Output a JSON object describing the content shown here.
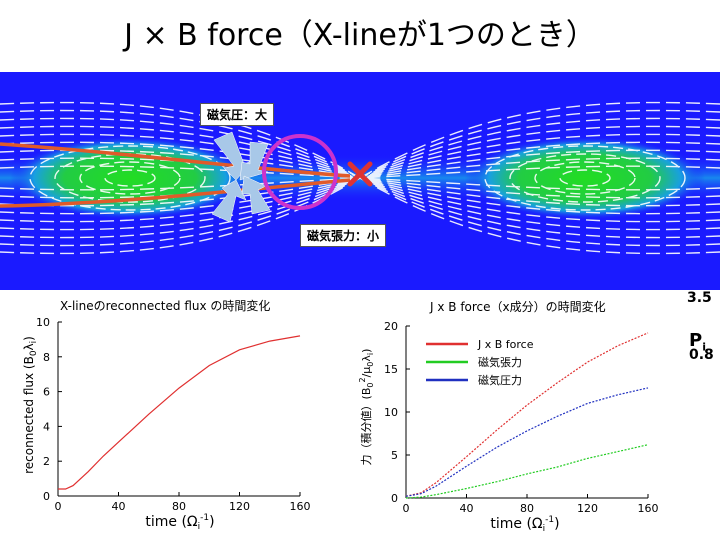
{
  "slide": {
    "title": "J × B  force（X-lineが1つのとき）"
  },
  "field_image": {
    "label_pressure": "磁気圧：大",
    "label_tension": "磁気張力：小",
    "colorbar": {
      "max_label": "3.5",
      "min_label": "0.8",
      "quantity": "P",
      "quantity_sub": "i"
    },
    "colors": {
      "background": "#1a1aff",
      "core": "#22dd22",
      "field_line": "#ffffff",
      "flux_tube": "#e05a2a",
      "circle": "#cc33cc",
      "xmark": "#dd3333",
      "arrow": "#a8c8e8"
    }
  },
  "chart_data": [
    {
      "type": "line",
      "title": "X-lineのreconnected flux の時間変化",
      "xlabel": "time (Ω",
      "xlabel_sub": "i",
      "xlabel_sup": "-1",
      "xlabel_end": ")",
      "ylabel": "reconnected flux (B",
      "ylabel_sub1": "0",
      "ylabel_mid": "λ",
      "ylabel_sub2": "i",
      "ylabel_end": ")",
      "xlim": [
        0,
        160
      ],
      "ylim": [
        0,
        10
      ],
      "xticks": [
        "0",
        "40",
        "80",
        "120",
        "160"
      ],
      "yticks": [
        "0",
        "2",
        "4",
        "6",
        "8",
        "10"
      ],
      "series": [
        {
          "color": "#e03030",
          "x": [
            0,
            5,
            10,
            20,
            30,
            40,
            60,
            80,
            100,
            120,
            140,
            160
          ],
          "y": [
            0.4,
            0.4,
            0.6,
            1.4,
            2.3,
            3.1,
            4.7,
            6.2,
            7.5,
            8.4,
            8.9,
            9.2
          ]
        }
      ]
    },
    {
      "type": "line",
      "title": "J x B force（x成分）の時間変化",
      "xlabel": "time (Ω",
      "xlabel_sub": "i",
      "xlabel_sup": "-1",
      "xlabel_end": ")",
      "ylabel": "力（積分値）(B",
      "ylabel_sub": "0",
      "ylabel_sup": "2",
      "ylabel_mid": "/μ",
      "ylabel_sub2": "0",
      "ylabel_mid2": "λ",
      "ylabel_sub3": "i",
      "ylabel_end": ")",
      "xlim": [
        0,
        160
      ],
      "ylim": [
        0,
        20
      ],
      "xticks": [
        "0",
        "40",
        "80",
        "120",
        "160"
      ],
      "yticks": [
        "0",
        "5",
        "10",
        "15",
        "20"
      ],
      "legend_position": "top-right",
      "series": [
        {
          "name": "J x B force",
          "color": "#e03030",
          "x": [
            0,
            10,
            20,
            40,
            60,
            80,
            100,
            120,
            140,
            160
          ],
          "y": [
            0.2,
            0.6,
            1.8,
            4.8,
            7.9,
            10.8,
            13.4,
            15.8,
            17.7,
            19.2
          ]
        },
        {
          "name": "磁気張力",
          "color": "#22cc22",
          "x": [
            0,
            10,
            20,
            40,
            60,
            80,
            100,
            120,
            140,
            160
          ],
          "y": [
            0,
            0.1,
            0.4,
            1.1,
            1.9,
            2.8,
            3.6,
            4.6,
            5.4,
            6.2
          ]
        },
        {
          "name": "磁気圧力",
          "color": "#2030c0",
          "x": [
            0,
            10,
            20,
            40,
            60,
            80,
            100,
            120,
            140,
            160
          ],
          "y": [
            0.2,
            0.5,
            1.4,
            3.7,
            5.9,
            7.8,
            9.5,
            11.0,
            12.0,
            12.8
          ]
        }
      ]
    }
  ]
}
